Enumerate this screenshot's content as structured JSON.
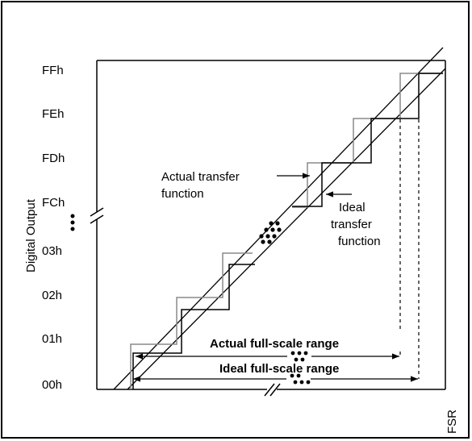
{
  "axes": {
    "y_label": "Digital Output",
    "x_label": "FSR",
    "y_ticks": [
      "FFh",
      "FEh",
      "FDh",
      "FCh",
      "03h",
      "02h",
      "01h",
      "00h"
    ]
  },
  "annotations": {
    "actual_transfer_line1": "Actual transfer",
    "actual_transfer_line2": "function",
    "ideal_transfer_line1": "Ideal",
    "ideal_transfer_line2": "transfer",
    "ideal_transfer_line3": "function",
    "actual_fsr": "Actual full-scale range",
    "ideal_fsr": "Ideal full-scale range"
  },
  "colors": {
    "ink": "#000000",
    "ideal_steps": "#8a8a8a",
    "actual_steps": "#000000"
  }
}
